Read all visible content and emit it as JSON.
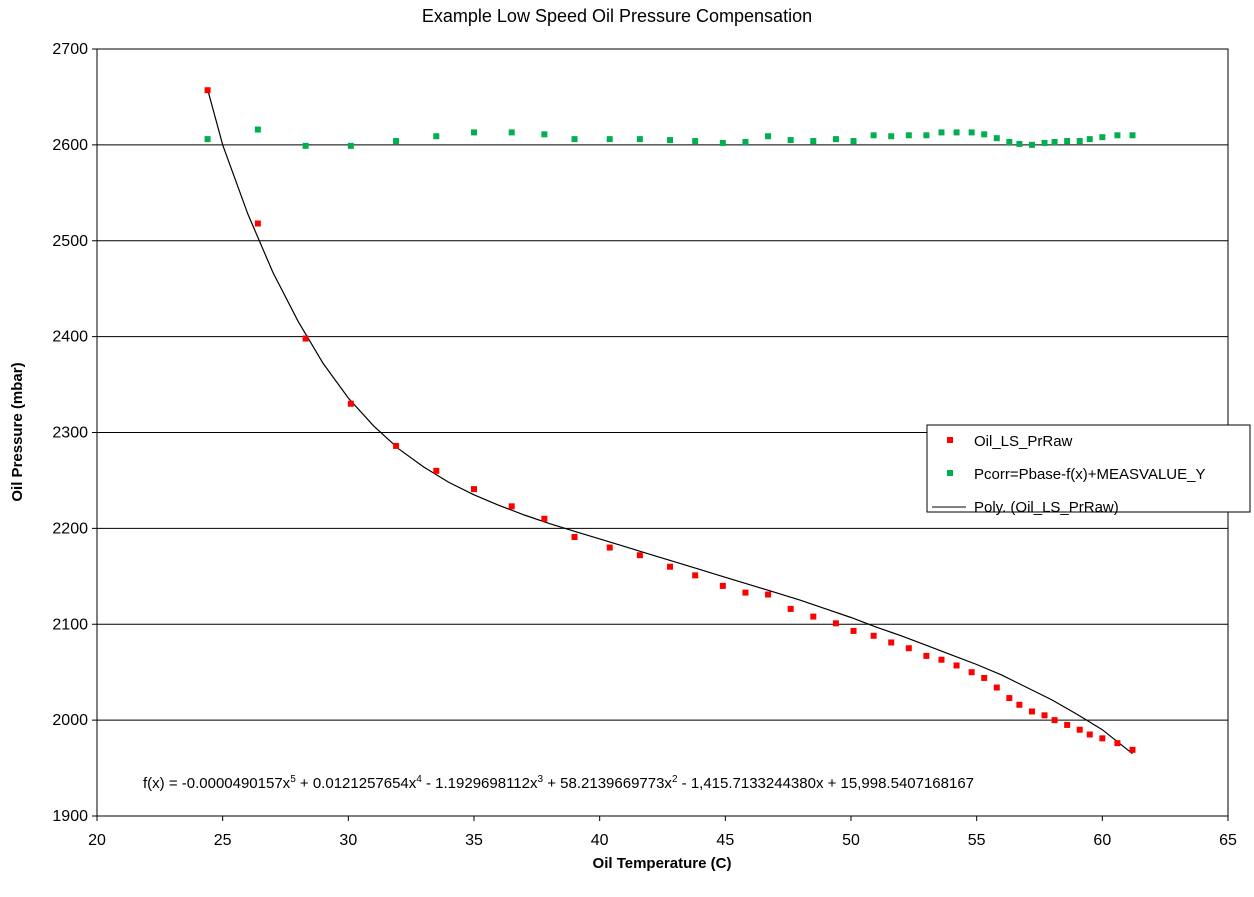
{
  "chart_data": {
    "type": "scatter",
    "title": "Example Low Speed Oil Pressure Compensation",
    "xlabel": "Oil Temperature  (C)",
    "ylabel": "Oil Pressure (mbar)",
    "xlim": [
      20,
      65
    ],
    "ylim": [
      1900,
      2700
    ],
    "x_ticks": [
      "20",
      "25",
      "30",
      "35",
      "40",
      "45",
      "50",
      "55",
      "60",
      "65"
    ],
    "y_ticks": [
      "1900",
      "2000",
      "2100",
      "2200",
      "2300",
      "2400",
      "2500",
      "2600",
      "2700"
    ],
    "grid": "horizontal",
    "legend_position": "right",
    "series": [
      {
        "name": "Oil_LS_PrRaw",
        "color": "#ff0000",
        "marker": "square",
        "x": [
          24.4,
          26.4,
          28.3,
          30.1,
          31.9,
          33.5,
          35.0,
          36.5,
          37.8,
          39.0,
          40.4,
          41.6,
          42.8,
          43.8,
          44.9,
          45.8,
          46.7,
          47.6,
          48.5,
          49.4,
          50.1,
          50.9,
          51.6,
          52.3,
          53.0,
          53.6,
          54.2,
          54.8,
          55.3,
          55.8,
          56.3,
          56.7,
          57.2,
          57.7,
          58.1,
          58.6,
          59.1,
          59.5,
          60.0,
          60.6,
          61.2
        ],
        "y": [
          2657,
          2518,
          2398,
          2330,
          2286,
          2260,
          2241,
          2223,
          2210,
          2191,
          2180,
          2172,
          2160,
          2151,
          2140,
          2133,
          2131,
          2116,
          2108,
          2101,
          2093,
          2088,
          2081,
          2075,
          2067,
          2063,
          2057,
          2050,
          2044,
          2034,
          2023,
          2016,
          2009,
          2005,
          2000,
          1995,
          1990,
          1985,
          1981,
          1976,
          1969
        ]
      },
      {
        "name": "Pcorr=Pbase-f(x)+MEASVALUE_Y",
        "color": "#00b050",
        "marker": "square",
        "x": [
          24.4,
          26.4,
          28.3,
          30.1,
          31.9,
          33.5,
          35.0,
          36.5,
          37.8,
          39.0,
          40.4,
          41.6,
          42.8,
          43.8,
          44.9,
          45.8,
          46.7,
          47.6,
          48.5,
          49.4,
          50.1,
          50.9,
          51.6,
          52.3,
          53.0,
          53.6,
          54.2,
          54.8,
          55.3,
          55.8,
          56.3,
          56.7,
          57.2,
          57.7,
          58.1,
          58.6,
          59.1,
          59.5,
          60.0,
          60.6,
          61.2
        ],
        "y": [
          2606,
          2616,
          2599,
          2599,
          2604,
          2609,
          2613,
          2613,
          2611,
          2606,
          2606,
          2606,
          2605,
          2604,
          2602,
          2603,
          2609,
          2605,
          2604,
          2606,
          2604,
          2610,
          2609,
          2610,
          2610,
          2613,
          2613,
          2613,
          2611,
          2607,
          2603,
          2601,
          2600,
          2602,
          2603,
          2604,
          2604,
          2606,
          2608,
          2610,
          2610
        ]
      },
      {
        "name": "Poly. (Oil_LS_PrRaw)",
        "color": "#000000",
        "type": "line",
        "x": [
          24.4,
          25.0,
          26.0,
          27.0,
          28.0,
          29.0,
          30.0,
          31.0,
          32.0,
          33.0,
          34.0,
          35.0,
          36.0,
          37.0,
          38.0,
          39.0,
          40.0,
          41.0,
          42.0,
          43.0,
          44.0,
          45.0,
          46.0,
          47.0,
          48.0,
          49.0,
          50.0,
          51.0,
          52.0,
          53.0,
          54.0,
          55.0,
          56.0,
          57.0,
          58.0,
          59.0,
          60.0,
          61.2
        ],
        "y": [
          2658,
          2600,
          2528,
          2467,
          2416,
          2372,
          2336,
          2307,
          2283,
          2264,
          2248,
          2235,
          2224,
          2214,
          2205,
          2197,
          2189,
          2181,
          2173,
          2165,
          2157,
          2149,
          2141,
          2133,
          2125,
          2116,
          2107,
          2097,
          2088,
          2078,
          2068,
          2058,
          2047,
          2034,
          2021,
          2006,
          1990,
          1965
        ]
      }
    ],
    "equation": {
      "prefix": "f(x) = -0.0000490157x",
      "t1": " + 0.0121257654x",
      "t2": " - 1.1929698112x",
      "t3": " + 58.2139669773x",
      "t4": " - 1,415.7133244380x  + 15,998.5407168167",
      "e5": "5",
      "e4": "4",
      "e3": "3",
      "e2": "2"
    }
  }
}
